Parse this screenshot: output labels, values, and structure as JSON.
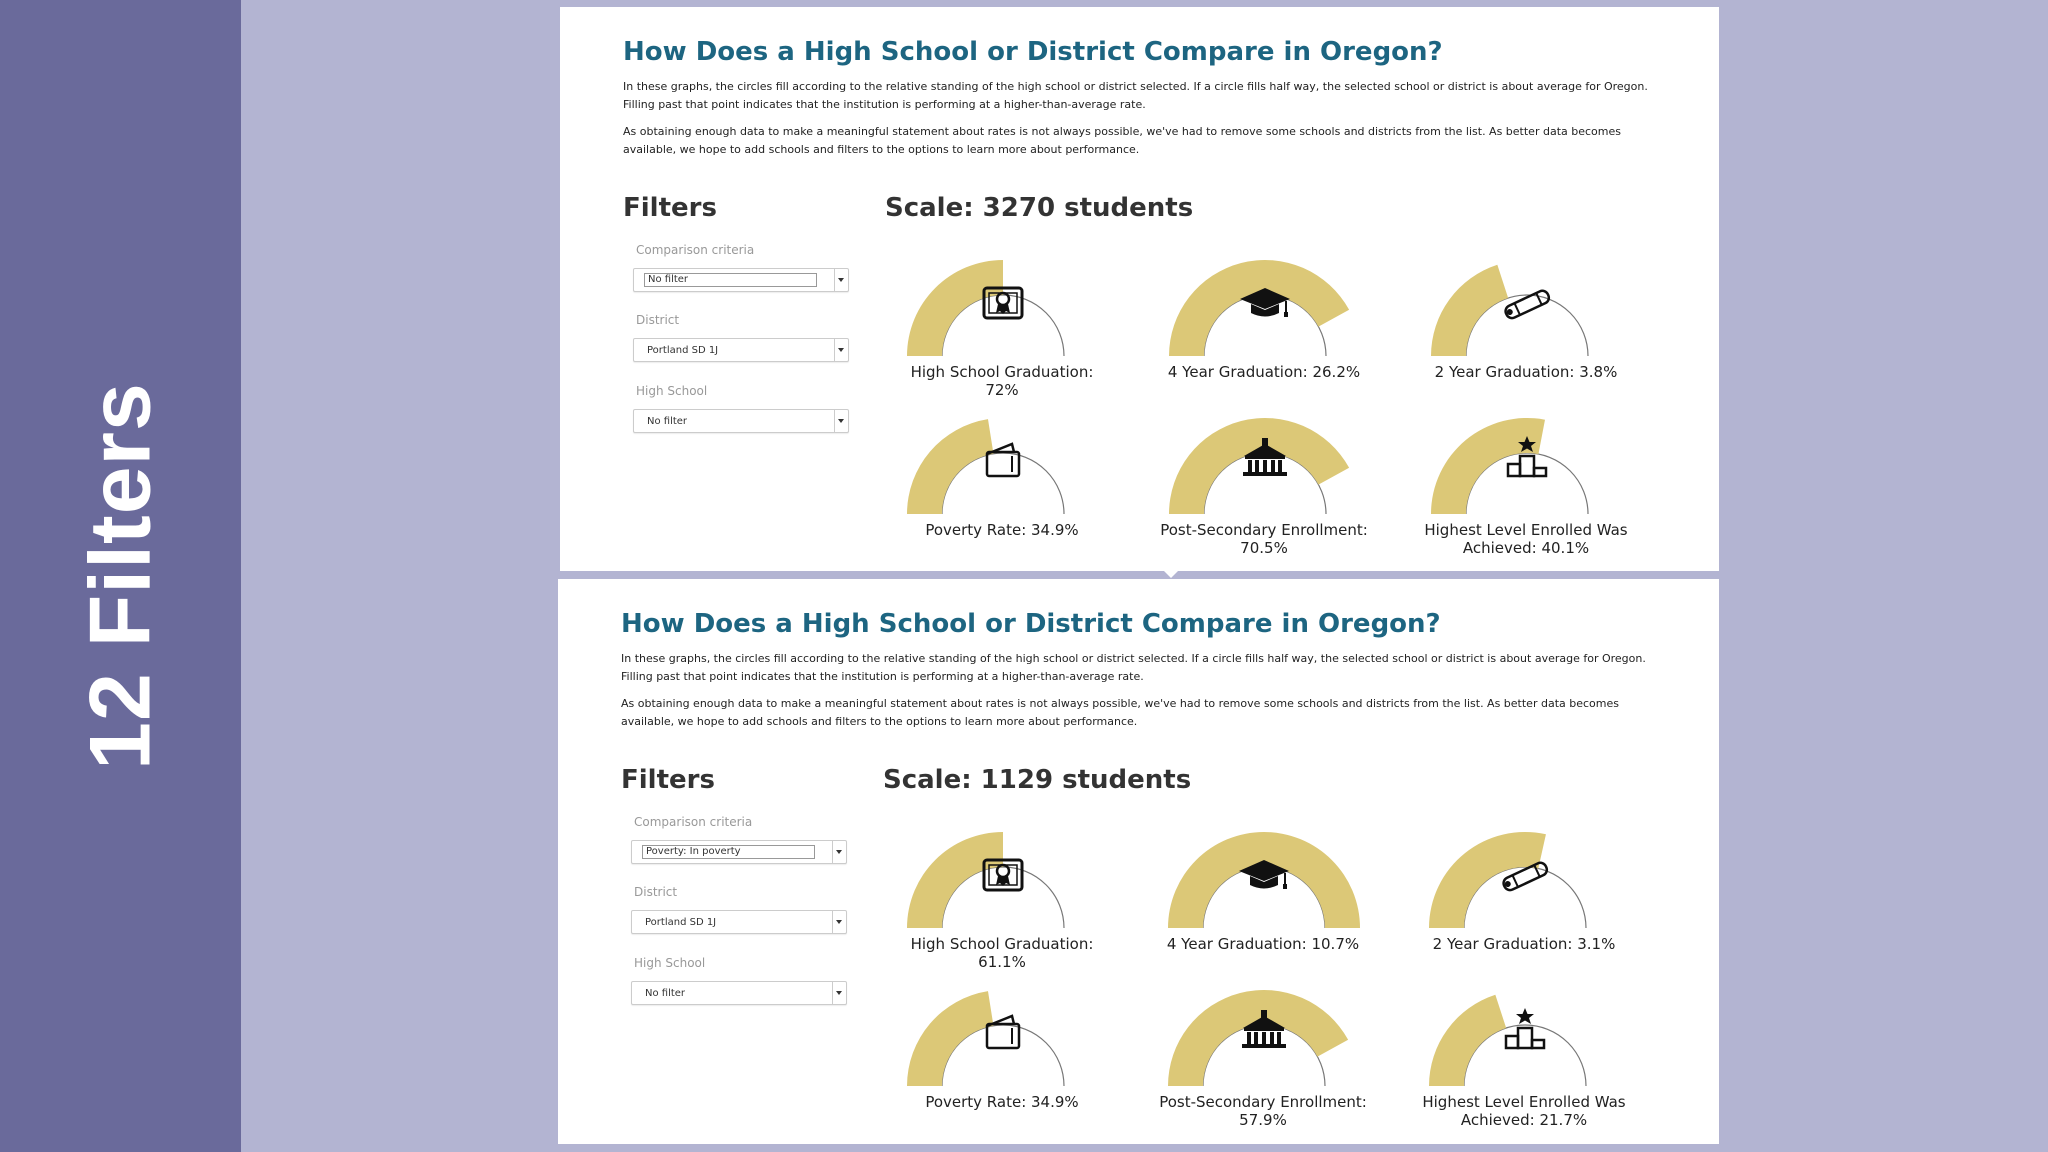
{
  "sidebar": {
    "title": "12 Filters"
  },
  "colors": {
    "gauge_fill": "#dcc877",
    "gauge_outline": "#777777",
    "title": "#1d6581",
    "sidebar": "#6a6a9b",
    "background": "#b3b4d2"
  },
  "panels": [
    {
      "title": "How Does a High School or District Compare in Oregon?",
      "paragraph1": "In these graphs, the circles fill according to the relative standing of the high school or district selected. If a circle fills half way, the selected school or district is about average for Oregon. Filling past that point indicates that the institution is performing at a higher-than-average rate.",
      "paragraph2": "As obtaining enough data to make a meaningful statement about rates is not always possible, we've had to remove some schools and districts from the list. As better data becomes available, we hope to add schools and filters to the options to learn more about performance.",
      "filters_heading": "Filters",
      "scale_text": "Scale: 3270 students",
      "filters": [
        {
          "label": "Comparison criteria",
          "value": "No filter"
        },
        {
          "label": "District",
          "value": "Portland SD 1J"
        },
        {
          "label": "High School",
          "value": "No filter"
        }
      ],
      "gauges": [
        {
          "label": "High School Graduation: 72%",
          "fill": 0.5,
          "icon": "diploma-icon"
        },
        {
          "label": "4 Year Graduation: 26.2%",
          "fill": 0.84,
          "icon": "graduation-cap-icon"
        },
        {
          "label": "2 Year Graduation: 3.8%",
          "fill": 0.4,
          "icon": "scroll-icon"
        },
        {
          "label": "Poverty Rate: 34.9%",
          "fill": 0.45,
          "icon": "wallet-icon"
        },
        {
          "label": "Post-Secondary Enrollment: 70.5%",
          "fill": 0.84,
          "icon": "university-building-icon"
        },
        {
          "label": "Highest Level Enrolled Was Achieved: 40.1%",
          "fill": 0.56,
          "icon": "podium-icon"
        }
      ]
    },
    {
      "title": "How Does a High School or District Compare in Oregon?",
      "paragraph1": "In these graphs, the circles fill according to the relative standing of the high school or district selected. If a circle fills half way, the selected school or district is about average for Oregon. Filling past that point indicates that the institution is performing at a higher-than-average rate.",
      "paragraph2": "As obtaining enough data to make a meaningful statement about rates is not always possible, we've had to remove some schools and districts from the list. As better data becomes available, we hope to add schools and filters to the options to learn more about performance.",
      "filters_heading": "Filters",
      "scale_text": "Scale: 1129 students",
      "filters": [
        {
          "label": "Comparison criteria",
          "value": "Poverty: In poverty"
        },
        {
          "label": "District",
          "value": "Portland SD 1J"
        },
        {
          "label": "High School",
          "value": "No filter"
        }
      ],
      "gauges": [
        {
          "label": "High School Graduation: 61.1%",
          "fill": 0.5,
          "icon": "diploma-icon"
        },
        {
          "label": "4 Year Graduation: 10.7%",
          "fill": 1.0,
          "icon": "graduation-cap-icon"
        },
        {
          "label": "2 Year Graduation: 3.1%",
          "fill": 0.57,
          "icon": "scroll-icon"
        },
        {
          "label": "Poverty Rate: 34.9%",
          "fill": 0.45,
          "icon": "wallet-icon"
        },
        {
          "label": "Post-Secondary Enrollment: 57.9%",
          "fill": 0.84,
          "icon": "university-building-icon"
        },
        {
          "label": "Highest Level Enrolled Was Achieved: 21.7%",
          "fill": 0.4,
          "icon": "podium-icon"
        }
      ]
    }
  ]
}
